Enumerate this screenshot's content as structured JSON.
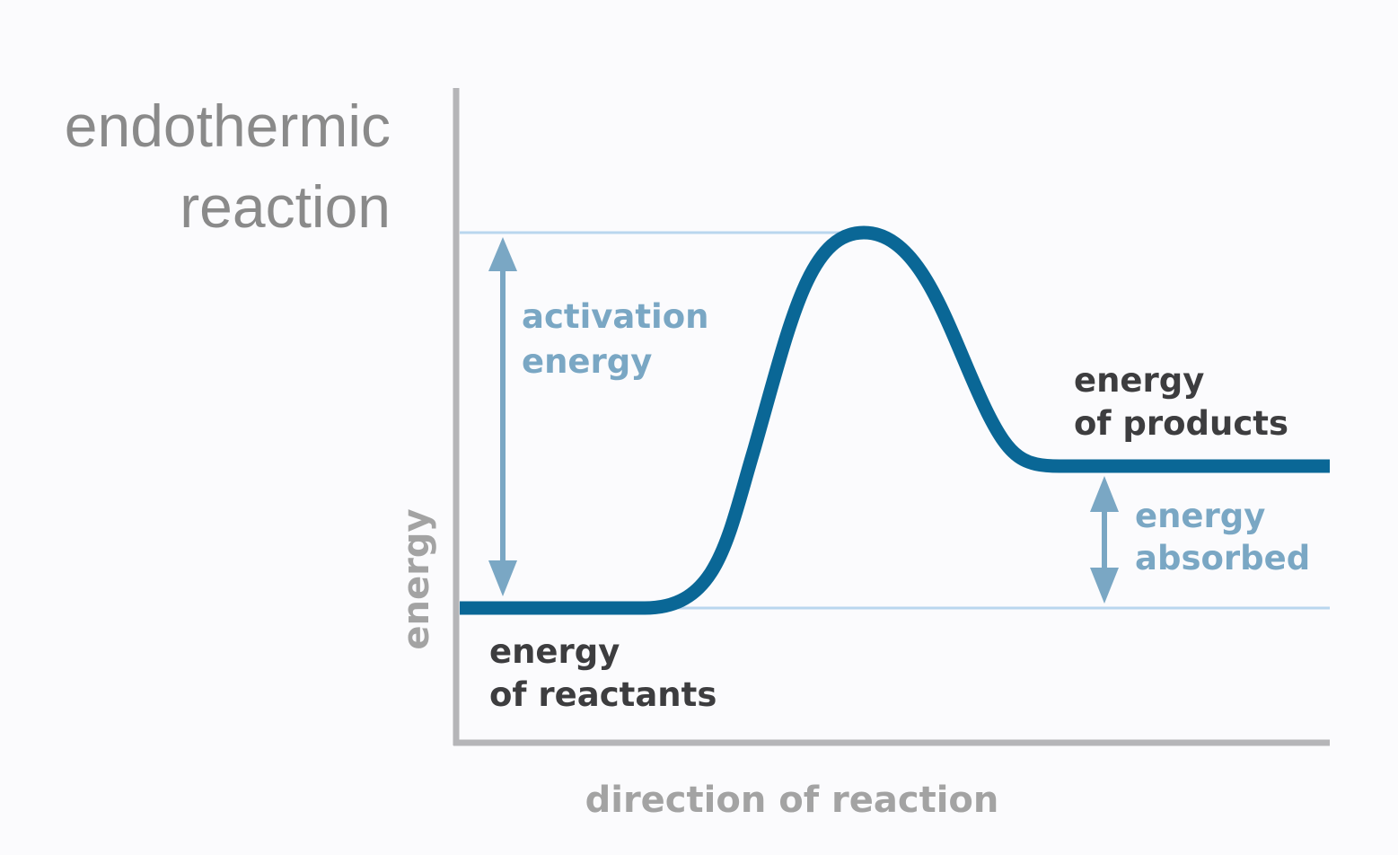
{
  "title": {
    "line1": "endothermic",
    "line2": "reaction"
  },
  "axes": {
    "y_label": "energy",
    "x_label": "direction of reaction"
  },
  "labels": {
    "activation": {
      "line1": "activation",
      "line2": "energy"
    },
    "products": {
      "line1": "energy",
      "line2": "of products"
    },
    "absorbed": {
      "line1": "energy",
      "line2": "absorbed"
    },
    "reactants": {
      "line1": "energy",
      "line2": "of reactants"
    }
  },
  "colors": {
    "curve": "#0a6796",
    "arrow": "#7aa7c4",
    "guide_line": "#b9d6ee",
    "axis": "#b5b5b8",
    "dark_text": "#3d3d3f",
    "gray_text": "#8a8a8a",
    "background": "#fbfbfd"
  },
  "icons": {
    "activation_arrow": "double-headed-vertical-arrow",
    "absorbed_arrow": "double-headed-vertical-arrow"
  }
}
